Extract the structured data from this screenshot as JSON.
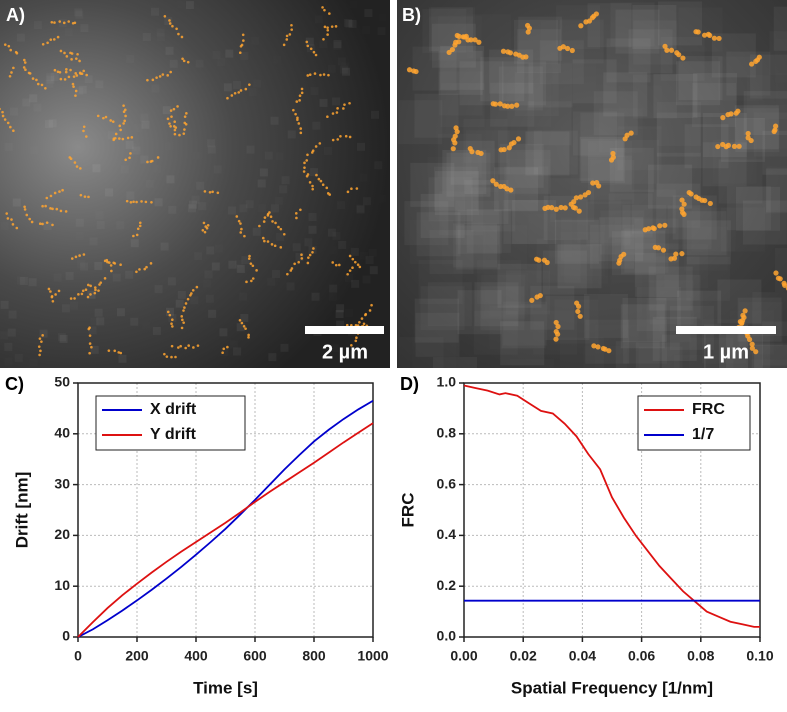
{
  "panels": [
    {
      "label": "A)",
      "scale_bar": "2 µm"
    },
    {
      "label": "B)",
      "scale_bar": "1 µm"
    }
  ],
  "chart_data": [
    {
      "type": "line",
      "panel_label": "C)",
      "x_label": "Time [s]",
      "y_label": "Drift [nm]",
      "x": [
        0,
        50,
        100,
        150,
        200,
        250,
        300,
        350,
        400,
        450,
        500,
        550,
        600,
        650,
        700,
        750,
        800,
        850,
        900,
        950,
        1000
      ],
      "series": [
        {
          "name": "X drift",
          "color": "#0000cc",
          "values": [
            0,
            1.5,
            3.3,
            5.2,
            7.2,
            9.3,
            11.5,
            13.8,
            16.2,
            18.7,
            21.3,
            24.1,
            27.0,
            30.0,
            33.0,
            35.8,
            38.5,
            40.8,
            42.9,
            44.8,
            46.5
          ]
        },
        {
          "name": "Y drift",
          "color": "#dd1111",
          "values": [
            0,
            2.9,
            5.7,
            8.2,
            10.5,
            12.7,
            14.8,
            16.8,
            18.7,
            20.6,
            22.5,
            24.5,
            26.6,
            28.6,
            30.5,
            32.4,
            34.3,
            36.3,
            38.3,
            40.2,
            42.1
          ]
        }
      ],
      "xlim": [
        0,
        1000
      ],
      "xticks": [
        0,
        200,
        400,
        600,
        800,
        1000
      ],
      "ylim": [
        0,
        50
      ],
      "yticks": [
        0,
        10,
        20,
        30,
        40,
        50
      ],
      "grid": true,
      "legend": "top-left"
    },
    {
      "type": "line",
      "panel_label": "D)",
      "x_label": "Spatial Frequency [1/nm]",
      "y_label": "FRC",
      "series": [
        {
          "name": "FRC",
          "color": "#dd1111",
          "x": [
            0,
            0.004,
            0.008,
            0.012,
            0.014,
            0.018,
            0.022,
            0.026,
            0.03,
            0.034,
            0.038,
            0.042,
            0.046,
            0.05,
            0.054,
            0.058,
            0.062,
            0.066,
            0.07,
            0.074,
            0.078,
            0.082,
            0.086,
            0.09,
            0.094,
            0.098,
            0.1
          ],
          "values": [
            0.99,
            0.98,
            0.97,
            0.955,
            0.96,
            0.95,
            0.92,
            0.89,
            0.88,
            0.84,
            0.79,
            0.72,
            0.66,
            0.55,
            0.47,
            0.4,
            0.34,
            0.28,
            0.23,
            0.18,
            0.14,
            0.1,
            0.08,
            0.06,
            0.05,
            0.04,
            0.04
          ]
        },
        {
          "name": "1/7",
          "color": "#0000cc",
          "x": [
            0,
            0.1
          ],
          "values": [
            0.143,
            0.143
          ]
        }
      ],
      "xlim": [
        0,
        0.1
      ],
      "xticks": [
        {
          "value": 0,
          "label": "0.00"
        },
        0.02,
        0.04,
        0.06,
        0.08,
        {
          "value": 0.1,
          "label": "0.10"
        }
      ],
      "ylim": [
        0,
        1
      ],
      "yticks": [
        {
          "value": 0,
          "label": "0.0"
        },
        0.2,
        0.4,
        0.6,
        0.8,
        {
          "value": 1,
          "label": "1.0"
        }
      ],
      "grid": true,
      "legend": "top-right"
    }
  ]
}
